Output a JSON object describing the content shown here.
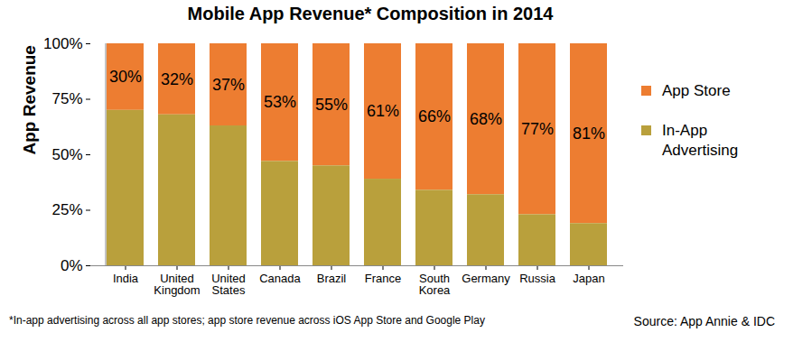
{
  "chart_data": {
    "type": "bar",
    "title": "Mobile App Revenue* Composition in 2014",
    "footnote": "*In-app advertising across all app stores; app store revenue across iOS App Store and Google Play",
    "source": "Source: App Annie & IDC",
    "y_label": "App Revenue",
    "categories": [
      "India",
      "United Kingdom",
      "United States",
      "Canada",
      "Brazil",
      "France",
      "South Korea",
      "Germany",
      "Russia",
      "Japan"
    ],
    "series": [
      {
        "name": "App Store",
        "color": "#ed7d31",
        "values": [
          30,
          32,
          37,
          53,
          55,
          61,
          66,
          68,
          77,
          81
        ],
        "data_labels": true,
        "value_labels": [
          "30%",
          "32%",
          "37%",
          "53%",
          "55%",
          "61%",
          "66%",
          "68%",
          "77%",
          "81%"
        ]
      },
      {
        "name": "In-App Advertising",
        "color": "#b9a03c",
        "values": [
          70,
          68,
          63,
          47,
          45,
          39,
          34,
          32,
          23,
          19
        ]
      }
    ],
    "stacked": true,
    "ylim": [
      0,
      100
    ],
    "yticks": [
      {
        "value": 0,
        "label": "0%"
      },
      {
        "value": 25,
        "label": "25%"
      },
      {
        "value": 50,
        "label": "50%"
      },
      {
        "value": 75,
        "label": "75%"
      },
      {
        "value": 100,
        "label": "100%"
      }
    ],
    "grid": false,
    "legend": "right"
  }
}
